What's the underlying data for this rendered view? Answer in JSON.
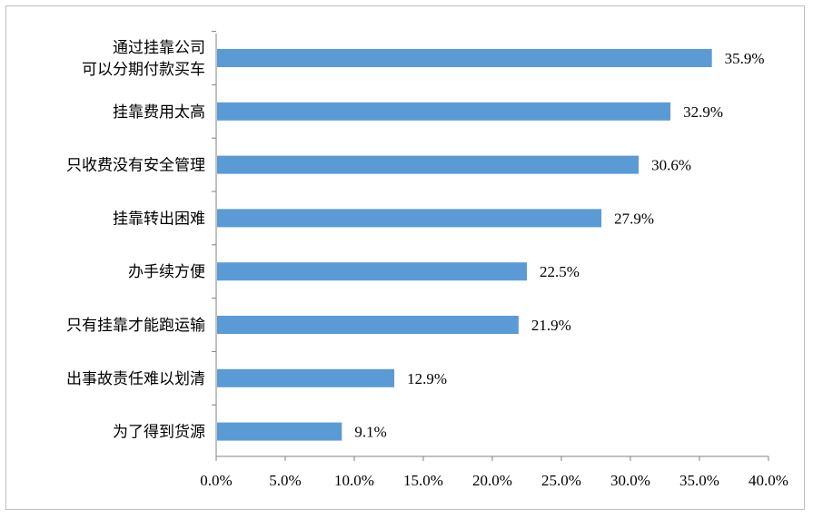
{
  "chart_data": {
    "type": "bar",
    "orientation": "horizontal",
    "categories": [
      "通过挂靠公司\n可以分期付款买车",
      "挂靠费用太高",
      "只收费没有安全管理",
      "挂靠转出困难",
      "办手续方便",
      "只有挂靠才能跑运输",
      "出事故责任难以划清",
      "为了得到货源"
    ],
    "values": [
      35.9,
      32.9,
      30.6,
      27.9,
      22.5,
      21.9,
      12.9,
      9.1
    ],
    "value_labels": [
      "35.9%",
      "32.9%",
      "30.6%",
      "27.9%",
      "22.5%",
      "21.9%",
      "12.9%",
      "9.1%"
    ],
    "xlim": [
      0,
      40
    ],
    "xticks": [
      "0.0%",
      "5.0%",
      "10.0%",
      "15.0%",
      "20.0%",
      "25.0%",
      "30.0%",
      "35.0%",
      "40.0%"
    ],
    "bar_color": "#5b9bd5",
    "grid": false
  }
}
